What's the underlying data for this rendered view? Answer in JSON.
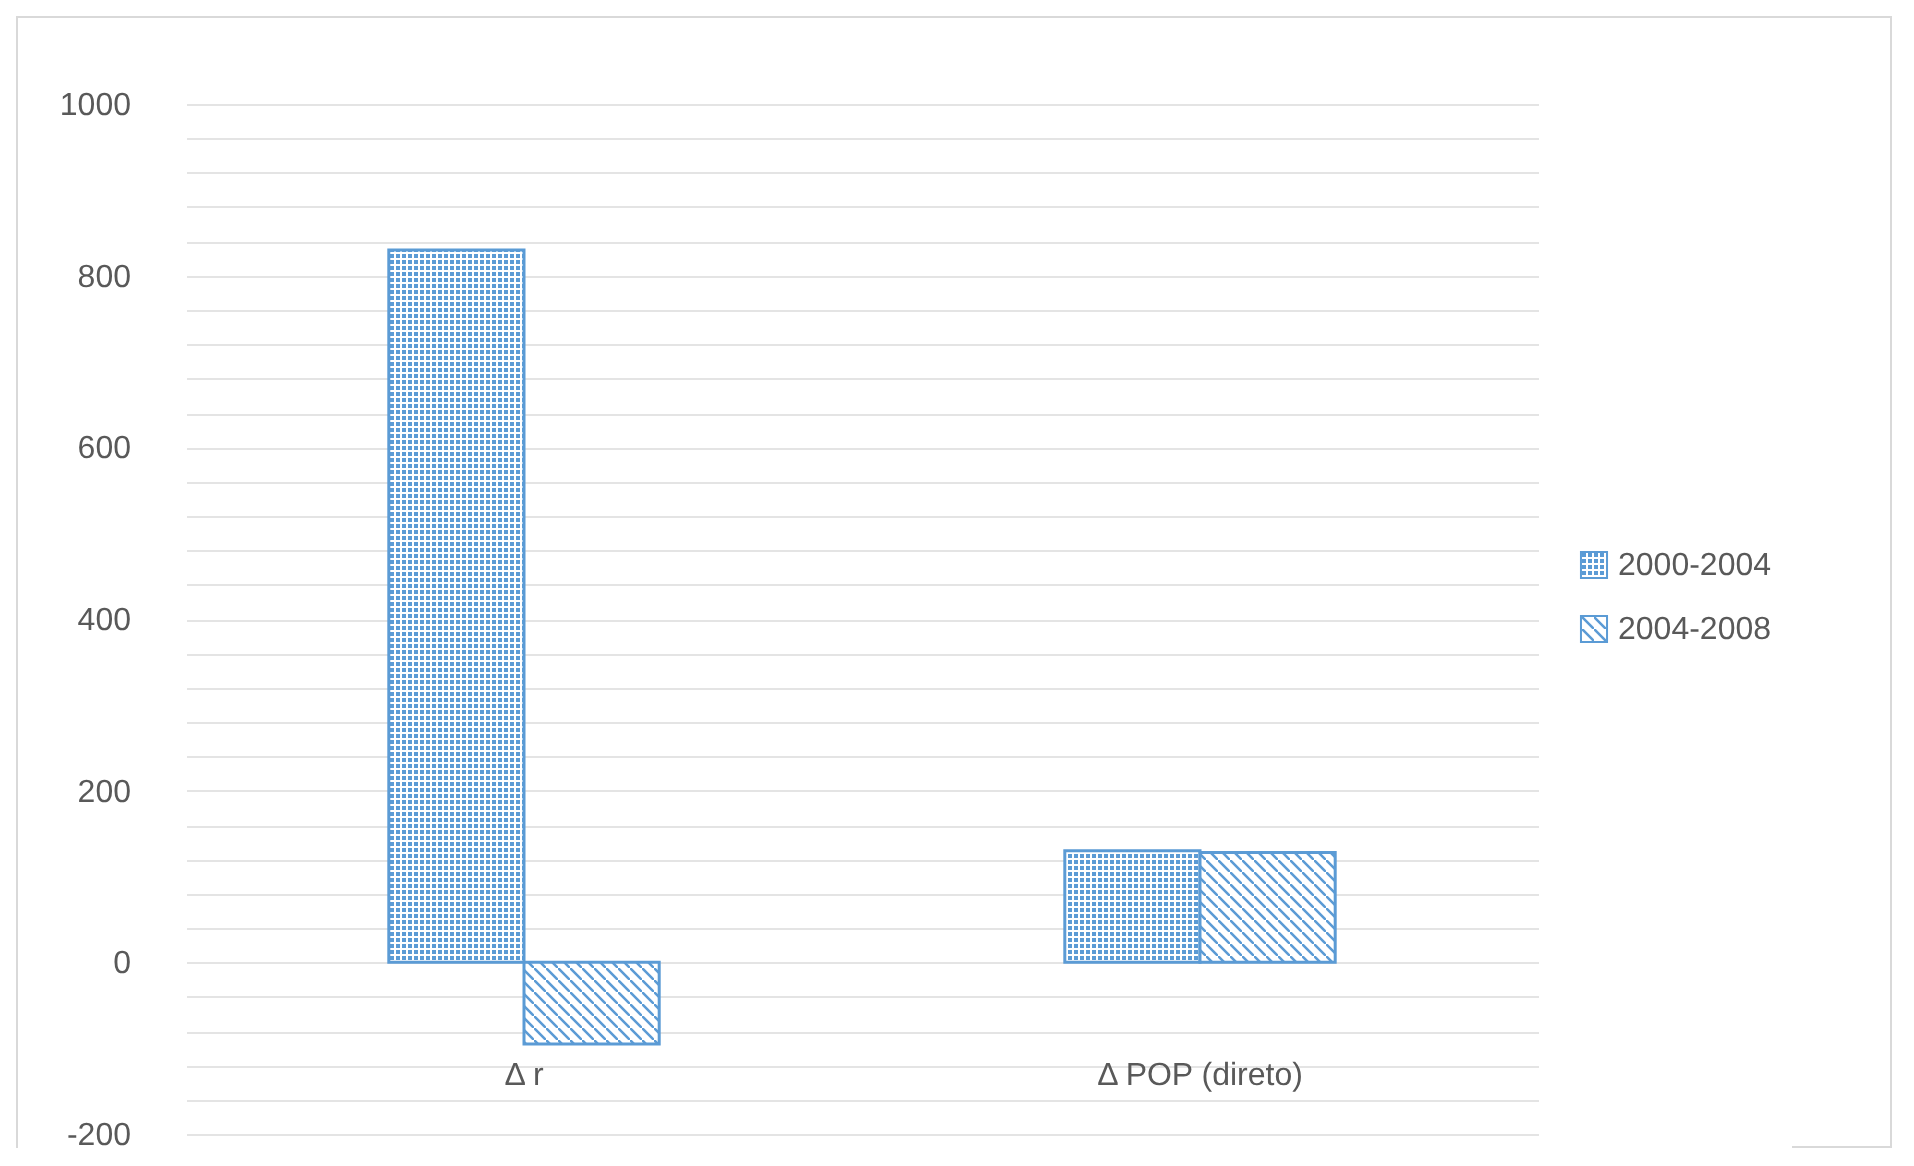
{
  "chart_data": {
    "type": "bar",
    "categories": [
      "Δ r",
      "Δ POP (direto)"
    ],
    "series": [
      {
        "name": "2000-2004",
        "color": "#5b9bd5",
        "values": [
          830,
          130
        ]
      },
      {
        "name": "2004-2008",
        "color": "#5b9bd5",
        "values": [
          -95,
          128
        ]
      }
    ],
    "ylim": [
      -200,
      1000
    ],
    "yticks": [
      -200,
      {
        "value": -160,
        "label": null
      },
      {
        "value": -120,
        "label": null
      },
      {
        "value": -80,
        "label": null
      },
      {
        "value": -40,
        "label": null
      },
      0,
      {
        "value": 40,
        "label": null
      },
      {
        "value": 80,
        "label": null
      },
      {
        "value": 120,
        "label": null
      },
      {
        "value": 160,
        "label": null
      },
      200,
      {
        "value": 240,
        "label": null
      },
      {
        "value": 280,
        "label": null
      },
      {
        "value": 320,
        "label": null
      },
      {
        "value": 360,
        "label": null
      },
      400,
      {
        "value": 440,
        "label": null
      },
      {
        "value": 480,
        "label": null
      },
      {
        "value": 520,
        "label": null
      },
      {
        "value": 560,
        "label": null
      },
      600,
      {
        "value": 640,
        "label": null
      },
      {
        "value": 680,
        "label": null
      },
      {
        "value": 720,
        "label": null
      },
      {
        "value": 760,
        "label": null
      },
      800,
      {
        "value": 840,
        "label": null
      },
      {
        "value": 880,
        "label": null
      },
      {
        "value": 920,
        "label": null
      },
      {
        "value": 960,
        "label": null
      },
      1000
    ],
    "grid": true,
    "legend": "right"
  }
}
